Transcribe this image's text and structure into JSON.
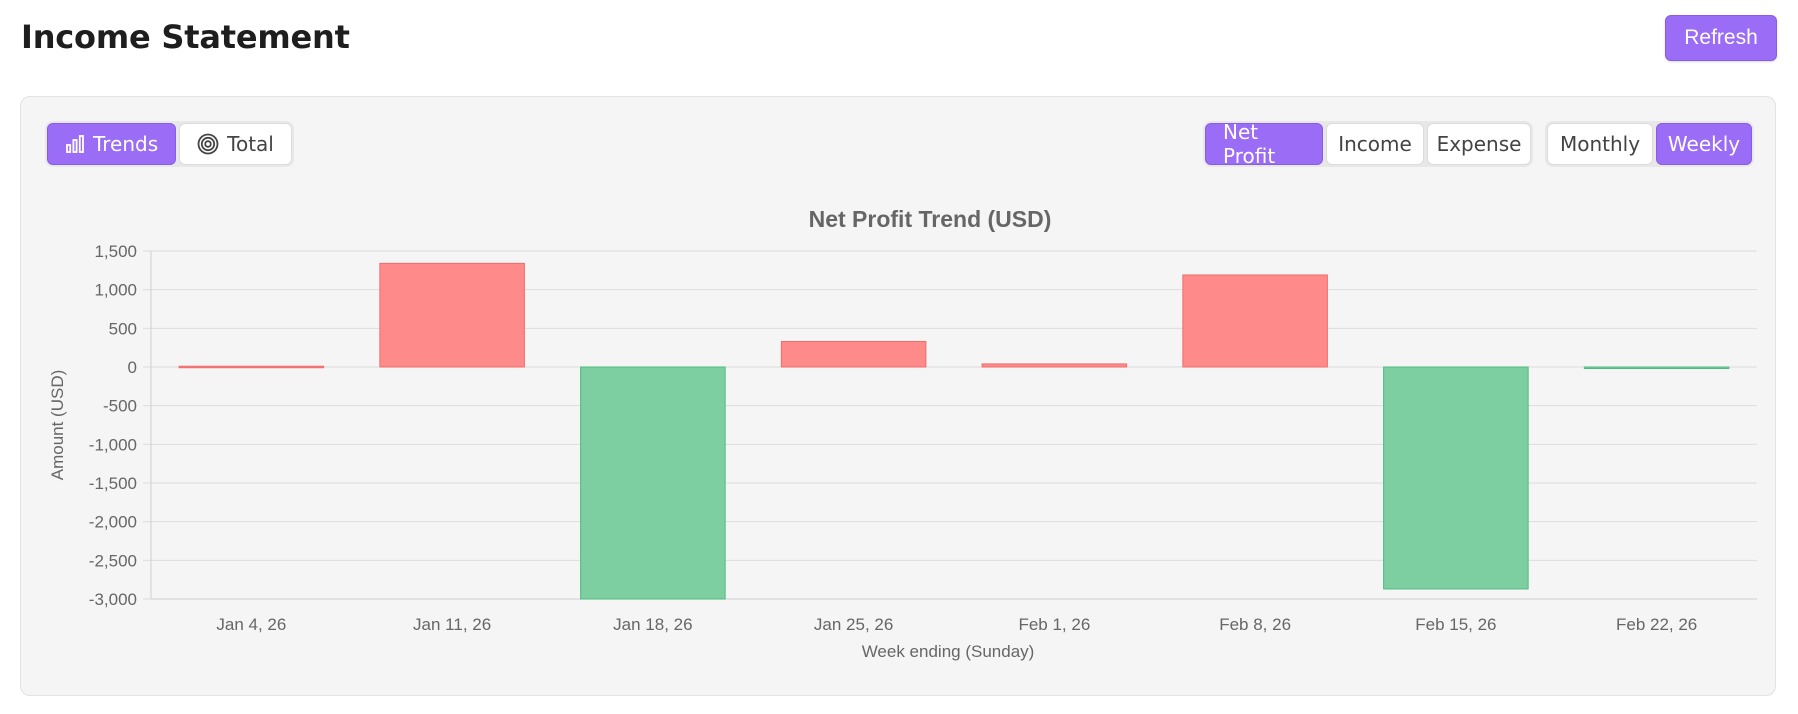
{
  "page": {
    "title": "Income Statement",
    "refresh_label": "Refresh"
  },
  "view_toggle": {
    "items": [
      {
        "label": "Trends",
        "icon": "bar-chart-icon",
        "active": true
      },
      {
        "label": "Total",
        "icon": "target-icon",
        "active": false
      }
    ]
  },
  "metric_toggle": {
    "items": [
      {
        "label": "Net Profit",
        "active": true
      },
      {
        "label": "Income",
        "active": false
      },
      {
        "label": "Expense",
        "active": false
      }
    ]
  },
  "period_toggle": {
    "items": [
      {
        "label": "Monthly",
        "active": false
      },
      {
        "label": "Weekly",
        "active": true
      }
    ]
  },
  "colors": {
    "accent": "#9b6cf5",
    "positive_bar": "#ff8a8a",
    "positive_border": "#f06b6b",
    "negative_bar": "#7dcfa1",
    "negative_border": "#4fba7e"
  },
  "chart_data": {
    "type": "bar",
    "title": "Net Profit Trend (USD)",
    "xlabel": "Week ending (Sunday)",
    "ylabel": "Amount (USD)",
    "categories": [
      "Jan 4, 26",
      "Jan 11, 26",
      "Jan 18, 26",
      "Jan 25, 26",
      "Feb 1, 26",
      "Feb 8, 26",
      "Feb 15, 26",
      "Feb 22, 26"
    ],
    "values": [
      10,
      1340,
      -3000,
      330,
      40,
      1190,
      -2870,
      -15
    ],
    "ylim": [
      -3000,
      1500
    ],
    "yticks": [
      1500,
      1000,
      500,
      0,
      -500,
      -1000,
      -1500,
      -2000,
      -2500,
      -3000
    ],
    "ytick_labels": [
      "1,500",
      "1,000",
      "500",
      "0",
      "-500",
      "-1,000",
      "-1,500",
      "-2,000",
      "-2,500",
      "-3,000"
    ],
    "grid": true,
    "legend": "none"
  }
}
